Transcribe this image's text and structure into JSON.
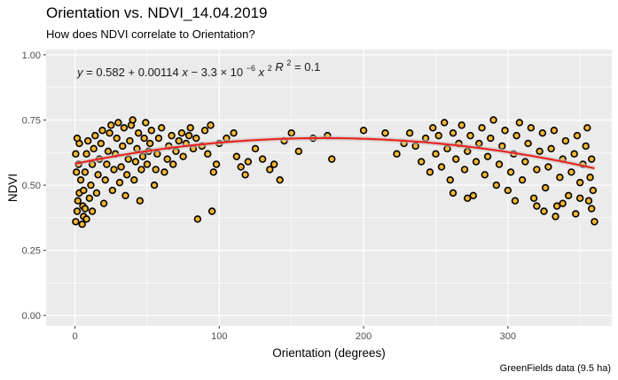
{
  "chart_data": {
    "type": "scatter",
    "title": "Orientation vs. NDVI_14.04.2019",
    "subtitle": "How does NDVI correlate to Orientation?",
    "caption": "GreenFields data (9.5 ha)",
    "xlabel": "Orientation (degrees)",
    "ylabel": "NDVI",
    "xlim": [
      -20,
      372
    ],
    "ylim": [
      -0.04,
      1.02
    ],
    "x_ticks": [
      0,
      100,
      200,
      300
    ],
    "y_ticks": [
      0.0,
      0.25,
      0.5,
      0.75,
      1.0
    ],
    "x_tick_labels": [
      "0",
      "100",
      "200",
      "300"
    ],
    "y_tick_labels": [
      "0.00",
      "0.25",
      "0.50",
      "0.75",
      "1.00"
    ],
    "grid": true,
    "equation": {
      "lhs": "y",
      "intercept": "0.582",
      "linear_coef": "0.00114",
      "quad_mantissa": "3.3",
      "quad_exponent": "−6",
      "r2_value": "0.1"
    },
    "fit": {
      "type": "quadratic",
      "intercept": 0.582,
      "linear": 0.00114,
      "quadratic": -3.3e-06,
      "color": "#e8261f"
    },
    "point_style": {
      "fill": "#f5b632",
      "stroke": "#000000"
    },
    "series": [
      {
        "points": [
          [
            0.5,
            0.36
          ],
          [
            1.5,
            0.4
          ],
          [
            2,
            0.44
          ],
          [
            3,
            0.47
          ],
          [
            4,
            0.52
          ],
          [
            1,
            0.55
          ],
          [
            2.5,
            0.58
          ],
          [
            0.5,
            0.62
          ],
          [
            3,
            0.66
          ],
          [
            1.5,
            0.68
          ],
          [
            5,
            0.35
          ],
          [
            6,
            0.38
          ],
          [
            5.5,
            0.42
          ],
          [
            6,
            0.48
          ],
          [
            7,
            0.55
          ],
          [
            8,
            0.62
          ],
          [
            9,
            0.67
          ],
          [
            7,
            0.41
          ],
          [
            8,
            0.37
          ],
          [
            10,
            0.45
          ],
          [
            11,
            0.5
          ],
          [
            12,
            0.58
          ],
          [
            13,
            0.64
          ],
          [
            14,
            0.69
          ],
          [
            12,
            0.4
          ],
          [
            15,
            0.47
          ],
          [
            16,
            0.54
          ],
          [
            17,
            0.6
          ],
          [
            18,
            0.66
          ],
          [
            19,
            0.71
          ],
          [
            20,
            0.43
          ],
          [
            21,
            0.52
          ],
          [
            22,
            0.58
          ],
          [
            23,
            0.63
          ],
          [
            24,
            0.7
          ],
          [
            25,
            0.73
          ],
          [
            26,
            0.48
          ],
          [
            27,
            0.56
          ],
          [
            28,
            0.62
          ],
          [
            29,
            0.68
          ],
          [
            30,
            0.74
          ],
          [
            31,
            0.51
          ],
          [
            32,
            0.57
          ],
          [
            33,
            0.65
          ],
          [
            34,
            0.72
          ],
          [
            35,
            0.46
          ],
          [
            36,
            0.54
          ],
          [
            37,
            0.6
          ],
          [
            38,
            0.67
          ],
          [
            39,
            0.73
          ],
          [
            40,
            0.75
          ],
          [
            41,
            0.52
          ],
          [
            42,
            0.59
          ],
          [
            43,
            0.64
          ],
          [
            44,
            0.7
          ],
          [
            45,
            0.44
          ],
          [
            46,
            0.56
          ],
          [
            47,
            0.61
          ],
          [
            48,
            0.68
          ],
          [
            49,
            0.74
          ],
          [
            50,
            0.58
          ],
          [
            51,
            0.63
          ],
          [
            52,
            0.66
          ],
          [
            53,
            0.71
          ],
          [
            55,
            0.5
          ],
          [
            56,
            0.56
          ],
          [
            57,
            0.62
          ],
          [
            58,
            0.68
          ],
          [
            60,
            0.72
          ],
          [
            62,
            0.55
          ],
          [
            64,
            0.6
          ],
          [
            65,
            0.65
          ],
          [
            67,
            0.69
          ],
          [
            68,
            0.58
          ],
          [
            70,
            0.63
          ],
          [
            72,
            0.67
          ],
          [
            74,
            0.7
          ],
          [
            75,
            0.61
          ],
          [
            77,
            0.66
          ],
          [
            79,
            0.69
          ],
          [
            80,
            0.72
          ],
          [
            82,
            0.64
          ],
          [
            84,
            0.68
          ],
          [
            85,
            0.37
          ],
          [
            88,
            0.65
          ],
          [
            90,
            0.71
          ],
          [
            92,
            0.62
          ],
          [
            94,
            0.73
          ],
          [
            95,
            0.4
          ],
          [
            96,
            0.55
          ],
          [
            98,
            0.58
          ],
          [
            100,
            0.66
          ],
          [
            105,
            0.68
          ],
          [
            110,
            0.7
          ],
          [
            112,
            0.61
          ],
          [
            115,
            0.57
          ],
          [
            118,
            0.54
          ],
          [
            120,
            0.59
          ],
          [
            125,
            0.64
          ],
          [
            130,
            0.6
          ],
          [
            135,
            0.56
          ],
          [
            138,
            0.58
          ],
          [
            142,
            0.52
          ],
          [
            145,
            0.67
          ],
          [
            150,
            0.7
          ],
          [
            155,
            0.63
          ],
          [
            165,
            0.68
          ],
          [
            175,
            0.69
          ],
          [
            178,
            0.6
          ],
          [
            200,
            0.71
          ],
          [
            215,
            0.7
          ],
          [
            223,
            0.62
          ],
          [
            228,
            0.66
          ],
          [
            232,
            0.7
          ],
          [
            236,
            0.65
          ],
          [
            240,
            0.59
          ],
          [
            243,
            0.68
          ],
          [
            246,
            0.55
          ],
          [
            248,
            0.72
          ],
          [
            250,
            0.62
          ],
          [
            252,
            0.69
          ],
          [
            254,
            0.57
          ],
          [
            256,
            0.74
          ],
          [
            258,
            0.64
          ],
          [
            260,
            0.52
          ],
          [
            262,
            0.7
          ],
          [
            264,
            0.6
          ],
          [
            266,
            0.66
          ],
          [
            268,
            0.73
          ],
          [
            270,
            0.56
          ],
          [
            272,
            0.63
          ],
          [
            274,
            0.69
          ],
          [
            276,
            0.46
          ],
          [
            278,
            0.59
          ],
          [
            280,
            0.66
          ],
          [
            282,
            0.72
          ],
          [
            284,
            0.54
          ],
          [
            286,
            0.61
          ],
          [
            288,
            0.68
          ],
          [
            290,
            0.75
          ],
          [
            292,
            0.5
          ],
          [
            294,
            0.58
          ],
          [
            296,
            0.65
          ],
          [
            298,
            0.71
          ],
          [
            300,
            0.48
          ],
          [
            302,
            0.55
          ],
          [
            304,
            0.62
          ],
          [
            306,
            0.69
          ],
          [
            308,
            0.74
          ],
          [
            310,
            0.52
          ],
          [
            312,
            0.59
          ],
          [
            314,
            0.66
          ],
          [
            316,
            0.72
          ],
          [
            318,
            0.45
          ],
          [
            320,
            0.56
          ],
          [
            322,
            0.63
          ],
          [
            324,
            0.7
          ],
          [
            326,
            0.49
          ],
          [
            328,
            0.57
          ],
          [
            330,
            0.64
          ],
          [
            332,
            0.71
          ],
          [
            334,
            0.42
          ],
          [
            336,
            0.53
          ],
          [
            338,
            0.6
          ],
          [
            340,
            0.67
          ],
          [
            342,
            0.46
          ],
          [
            344,
            0.55
          ],
          [
            346,
            0.62
          ],
          [
            348,
            0.69
          ],
          [
            350,
            0.51
          ],
          [
            352,
            0.58
          ],
          [
            354,
            0.65
          ],
          [
            356,
            0.44
          ],
          [
            357,
            0.53
          ],
          [
            358,
            0.6
          ],
          [
            359,
            0.48
          ],
          [
            360,
            0.36
          ],
          [
            358,
            0.41
          ],
          [
            355,
            0.72
          ],
          [
            350,
            0.45
          ],
          [
            333,
            0.38
          ],
          [
            325,
            0.4
          ],
          [
            320,
            0.42
          ],
          [
            305,
            0.44
          ],
          [
            272,
            0.45
          ],
          [
            262,
            0.47
          ],
          [
            347,
            0.39
          ],
          [
            338,
            0.43
          ]
        ]
      }
    ]
  }
}
